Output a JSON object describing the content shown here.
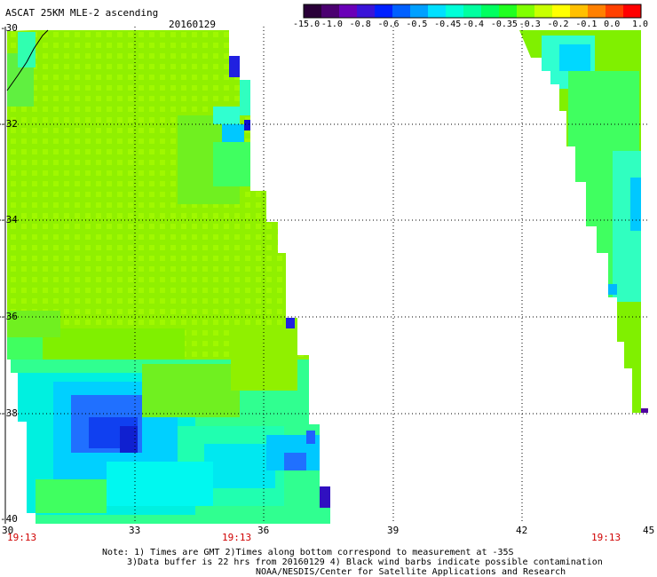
{
  "header": {
    "title": "ASCAT 25KM MLE-2 ascending",
    "date": "20160129"
  },
  "colorbar": {
    "colors": [
      "#2a0038",
      "#4b0070",
      "#6a00b8",
      "#3a14d8",
      "#0020ff",
      "#0060ff",
      "#00a0ff",
      "#00e0ff",
      "#00ffd8",
      "#00ffa0",
      "#00ff60",
      "#20ff20",
      "#80ff00",
      "#c8ff00",
      "#ffff00",
      "#ffc000",
      "#ff8000",
      "#ff4000",
      "#ff0000"
    ],
    "labels": [
      "-15.0",
      "-1.0",
      "-0.8",
      "-0.6",
      "-0.5",
      "-0.45",
      "-0.4",
      "-0.35",
      "-0.3",
      "-0.2",
      "-0.1",
      "0.0",
      "1.0"
    ]
  },
  "axes": {
    "y_labels": [
      "-30",
      "-32",
      "-34",
      "-36",
      "-38",
      "-40"
    ],
    "x_labels": [
      "30",
      "33",
      "36",
      "39",
      "42",
      "45"
    ],
    "times": [
      "19:13",
      "19:13",
      "19:13"
    ]
  },
  "notes": [
    "Note: 1) Times are GMT 2)Times along bottom correspond to measurement at -35S",
    "3)Data buffer is 22 hrs from 20160129 4) Black wind barbs indicate possible contamination",
    "NOAA/NESDIS/Center for Satellite Applications and Research"
  ]
}
